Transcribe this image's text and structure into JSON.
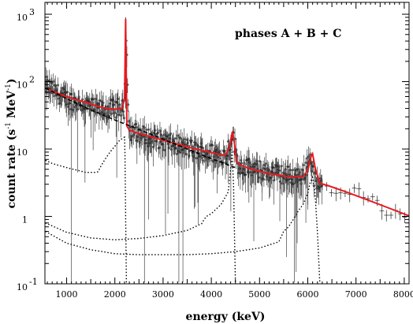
{
  "chart_data": {
    "type": "line",
    "annotation": "phases A + B + C",
    "xlabel": "energy (keV)",
    "ylabel": "count rate (s",
    "ylabel_exp1": "-1",
    "ylabel_mid": " MeV",
    "ylabel_exp2": "-1",
    "ylabel_end": ")",
    "x_scale": "linear",
    "y_scale": "log",
    "xlim": [
      550,
      8100
    ],
    "ylim": [
      0.1,
      1500
    ],
    "x_ticks": [
      1000,
      2000,
      3000,
      4000,
      5000,
      6000,
      7000,
      8000
    ],
    "x_tick_labels": [
      "1000",
      "2000",
      "3000",
      "4000",
      "5000",
      "6000",
      "7000",
      "8000"
    ],
    "y_ticks": [
      {
        "value": 0.1,
        "base": "10",
        "exp": "-1"
      },
      {
        "value": 1,
        "base": "1",
        "exp": ""
      },
      {
        "value": 10,
        "base": "10",
        "exp": ""
      },
      {
        "value": 100,
        "base": "10",
        "exp": "2"
      },
      {
        "value": 1000,
        "base": "10",
        "exp": "3"
      }
    ],
    "grid": false,
    "colors": {
      "fit": "#e8191f",
      "data": "#000000",
      "components": "#000000"
    },
    "series": [
      {
        "style": "data-points",
        "x": [
          600,
          800,
          1000,
          1200,
          1400,
          1600,
          1800,
          2000,
          2100,
          2200,
          2223,
          2300,
          2500,
          2700,
          2900,
          3100,
          3300,
          3500,
          3700,
          3900,
          4100,
          4300,
          4440,
          4550,
          4700,
          4900,
          5100,
          5300,
          5500,
          5700,
          5900,
          6050,
          6150,
          6250,
          6400,
          6600,
          6800,
          7000,
          7200,
          7400,
          7600,
          7800,
          8000
        ],
        "y": [
          85,
          68,
          56,
          50,
          46,
          40,
          39,
          40,
          41,
          38,
          850,
          19,
          17,
          15,
          14,
          12.5,
          11.5,
          10.5,
          9.5,
          9,
          8.5,
          8,
          17,
          6,
          5.5,
          5,
          4.7,
          4.4,
          4.2,
          4,
          4,
          8,
          3.2,
          2.8,
          2.6,
          2.5,
          2.4,
          2.4,
          2.1,
          1.8,
          1.2,
          1.1,
          1.0
        ]
      },
      {
        "style": "fit-line",
        "x": [
          560,
          800,
          1000,
          1200,
          1400,
          1600,
          1700,
          1800,
          2000,
          2150,
          2200,
          2215,
          2223,
          2231,
          2250,
          2300,
          2500,
          2800,
          3200,
          3600,
          4000,
          4200,
          4300,
          4380,
          4420,
          4445,
          4480,
          4520,
          4600,
          4800,
          5200,
          5600,
          5900,
          6000,
          6060,
          6100,
          6160,
          6250,
          6400,
          6800,
          7200,
          7600,
          8100
        ],
        "y": [
          80,
          68,
          60,
          54,
          49,
          44,
          42,
          40,
          39,
          40,
          55,
          300,
          850,
          250,
          22,
          19,
          17,
          14.8,
          12.3,
          10.3,
          8.9,
          8.2,
          8.2,
          11,
          16,
          17.5,
          12,
          6.5,
          5.8,
          5.1,
          4.3,
          3.9,
          3.9,
          4.8,
          7.5,
          8.5,
          5,
          3.1,
          2.9,
          2.3,
          1.8,
          1.4,
          1.02
        ]
      },
      {
        "style": "dashed",
        "x": [
          560,
          1000,
          1500,
          2000,
          2500,
          3000,
          3500,
          4000,
          4500
        ],
        "y": [
          80,
          56,
          38,
          27,
          19.5,
          14,
          10,
          7.2,
          5.3
        ]
      },
      {
        "style": "dotted",
        "x": [
          560,
          700,
          1000,
          1400,
          1600,
          1650,
          1700,
          1750,
          1800,
          1900,
          2000,
          2100,
          2200,
          2210,
          2225,
          2240
        ],
        "y": [
          6.8,
          6.1,
          5.3,
          4.5,
          4.5,
          4.6,
          5.4,
          6.2,
          7.1,
          9,
          11,
          13.5,
          15,
          8,
          0.8,
          0.1
        ]
      },
      {
        "style": "dotted",
        "x": [
          560,
          1000,
          1500,
          2000,
          2500,
          3000,
          3500,
          3800,
          3850,
          3900,
          4000,
          4200,
          4350,
          4400,
          4430,
          4460,
          4500
        ],
        "y": [
          0.8,
          0.58,
          0.48,
          0.45,
          0.47,
          0.52,
          0.62,
          0.78,
          0.9,
          1.0,
          1.1,
          1.5,
          2.3,
          5,
          9,
          3,
          0.1
        ]
      },
      {
        "style": "dotted",
        "x": [
          560,
          1000,
          1500,
          2000,
          2500,
          3000,
          3500,
          4000,
          4500,
          5000,
          5400,
          5500,
          5600,
          5700,
          5800,
          5900,
          6000,
          6050,
          6100,
          6150,
          6200,
          6250
        ],
        "y": [
          0.6,
          0.4,
          0.32,
          0.28,
          0.27,
          0.27,
          0.27,
          0.28,
          0.3,
          0.34,
          0.42,
          0.6,
          0.7,
          0.9,
          1.2,
          1.5,
          2.2,
          3.2,
          3.8,
          2.2,
          0.6,
          0.1
        ]
      }
    ]
  }
}
